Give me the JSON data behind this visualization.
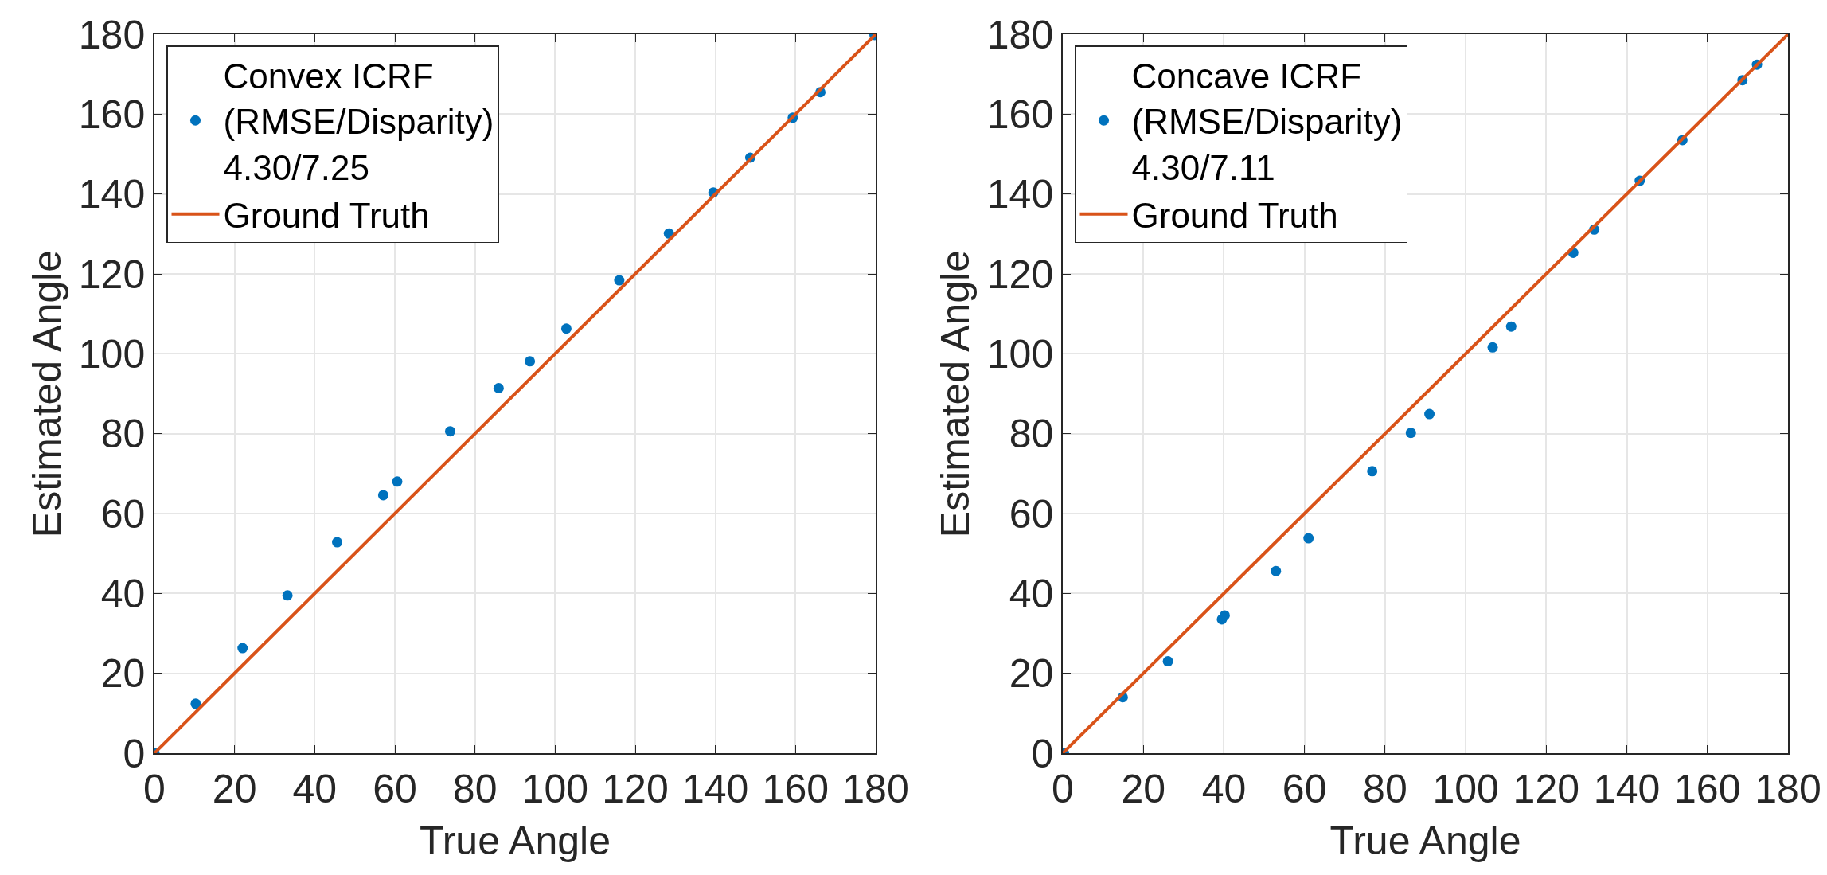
{
  "chart_data": [
    {
      "type": "scatter",
      "xlabel": "True Angle",
      "ylabel": "Estimated Angle",
      "xlim": [
        0,
        180
      ],
      "ylim": [
        0,
        180
      ],
      "xticks": [
        0,
        20,
        40,
        60,
        80,
        100,
        120,
        140,
        160,
        180
      ],
      "yticks": [
        0,
        20,
        40,
        60,
        80,
        100,
        120,
        140,
        160,
        180
      ],
      "grid": true,
      "legend": "top left",
      "series": [
        {
          "name": "Convex ICRF\n(RMSE/Disparity)\n4.30/7.25",
          "marker": "circle",
          "color": "#0072bd",
          "x": [
            0,
            10.3,
            22,
            33.2,
            45.6,
            57.1,
            60.6,
            73.8,
            85.9,
            93.7,
            102.8,
            116,
            128.4,
            139.5,
            148.7,
            159.3,
            166.2,
            179.7
          ],
          "values": [
            0,
            12.4,
            26.3,
            39.5,
            52.8,
            64.6,
            68,
            80.6,
            91.4,
            98.1,
            106.3,
            118.4,
            130.1,
            140.4,
            149.1,
            159.1,
            165.5,
            179.8
          ]
        },
        {
          "name": "Ground Truth",
          "type": "line",
          "marker": "none",
          "line_style": "solid",
          "color": "#d95319",
          "x": [
            0,
            180
          ],
          "values": [
            0,
            180
          ]
        }
      ]
    },
    {
      "type": "scatter",
      "xlabel": "True Angle",
      "ylabel": "Estimated Angle",
      "xlim": [
        0,
        180
      ],
      "ylim": [
        0,
        180
      ],
      "xticks": [
        0,
        20,
        40,
        60,
        80,
        100,
        120,
        140,
        160,
        180
      ],
      "yticks": [
        0,
        20,
        40,
        60,
        80,
        100,
        120,
        140,
        160,
        180
      ],
      "grid": true,
      "legend": "top left",
      "series": [
        {
          "name": "Concave ICRF\n(RMSE/Disparity)\n4.30/7.11",
          "marker": "circle",
          "color": "#0072bd",
          "x": [
            0.3,
            14.9,
            26.1,
            39.5,
            40.2,
            52.9,
            61,
            76.8,
            86.4,
            91,
            106.7,
            111.3,
            126.7,
            131.9,
            143.2,
            153.8,
            168.7,
            172.3
          ],
          "values": [
            0,
            14,
            23,
            33.5,
            34.5,
            45.6,
            53.8,
            70.6,
            80.2,
            84.9,
            101.6,
            106.8,
            125.3,
            131.1,
            143.3,
            153.5,
            168.5,
            172.4
          ]
        },
        {
          "name": "Ground Truth",
          "type": "line",
          "marker": "none",
          "line_style": "solid",
          "color": "#d95319",
          "x": [
            0,
            180
          ],
          "values": [
            0,
            180
          ]
        }
      ]
    }
  ]
}
